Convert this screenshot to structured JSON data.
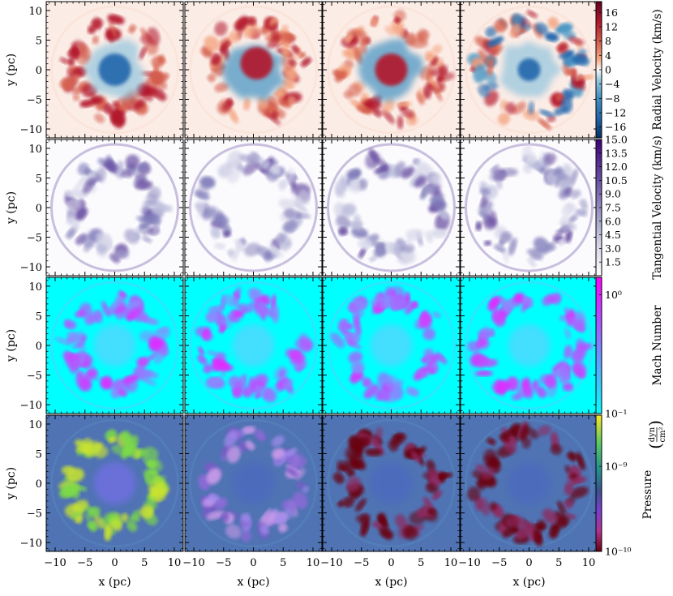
{
  "chart_data": {
    "type": "heatmap",
    "layout": {
      "rows": 4,
      "cols": 4,
      "shared_axes": true
    },
    "x_label": "x  (pc)",
    "y_label": "y  (pc)",
    "x_range": [
      -11.5,
      11.5
    ],
    "y_range": [
      -11.5,
      11.5
    ],
    "x_ticks": [
      -10,
      -5,
      0,
      5,
      10
    ],
    "y_ticks": [
      -10,
      -5,
      0,
      5,
      10
    ],
    "x_tick_labels": [
      "−10",
      "−5",
      "0",
      "5",
      "10"
    ],
    "y_tick_labels": [
      "−10",
      "−5",
      "0",
      "5",
      "10"
    ],
    "rows": [
      {
        "quantity": "Radial Velocity",
        "colorbar_label": "Radial Velocity  (km/s)",
        "colormap": "RdBu_r",
        "scale": "linear",
        "range": [
          -19,
          19
        ],
        "ticks": [
          16,
          12,
          8,
          4,
          0,
          -4,
          -8,
          -12,
          -16
        ],
        "tick_labels": [
          "16",
          "12",
          "8",
          "4",
          "0",
          "−4",
          "−8",
          "−12",
          "−16"
        ],
        "background_color": "#fbece6",
        "panels": [
          {
            "description": "bipolar red shell with blue core"
          },
          {
            "description": "red core inside blue ring"
          },
          {
            "description": "broken red shell, red core"
          },
          {
            "description": "blue core, fragmented red shell"
          }
        ]
      },
      {
        "quantity": "Tangential Velocity",
        "colorbar_label": "Tangential Velocity  (km/s)",
        "colormap": "Purples",
        "scale": "linear",
        "range": [
          0,
          15
        ],
        "ticks": [
          15.0,
          13.5,
          12.0,
          10.5,
          9.0,
          7.5,
          6.0,
          4.5,
          3.0,
          1.5
        ],
        "tick_labels": [
          "15.0",
          "13.5",
          "12.0",
          "10.5",
          "9.0",
          "7.5",
          "6.0",
          "4.5",
          "3.0",
          "1.5"
        ],
        "background_color": "#fbfafd",
        "panels": [
          {},
          {},
          {},
          {}
        ]
      },
      {
        "quantity": "Mach Number",
        "colorbar_label": "Mach Number",
        "colormap": "cool",
        "scale": "log",
        "range": [
          0.1,
          1.4
        ],
        "ticks": [
          1,
          0.1
        ],
        "tick_labels": [
          "10⁰",
          "10⁻¹"
        ],
        "background_color": "#00ffff",
        "panels": [
          {},
          {},
          {},
          {}
        ]
      },
      {
        "quantity": "Pressure",
        "colorbar_label": "Pressure",
        "colorbar_unit": {
          "numerator": "dyn",
          "denominator": "cm²"
        },
        "colormap": "viridis-magma",
        "scale": "log",
        "range": [
          1e-10,
          4e-09
        ],
        "ticks": [
          1e-09,
          1e-10
        ],
        "tick_labels": [
          "10⁻⁹",
          "10⁻¹⁰"
        ],
        "background_color": "#4f73b3",
        "panels": [
          {},
          {},
          {},
          {}
        ]
      }
    ]
  }
}
